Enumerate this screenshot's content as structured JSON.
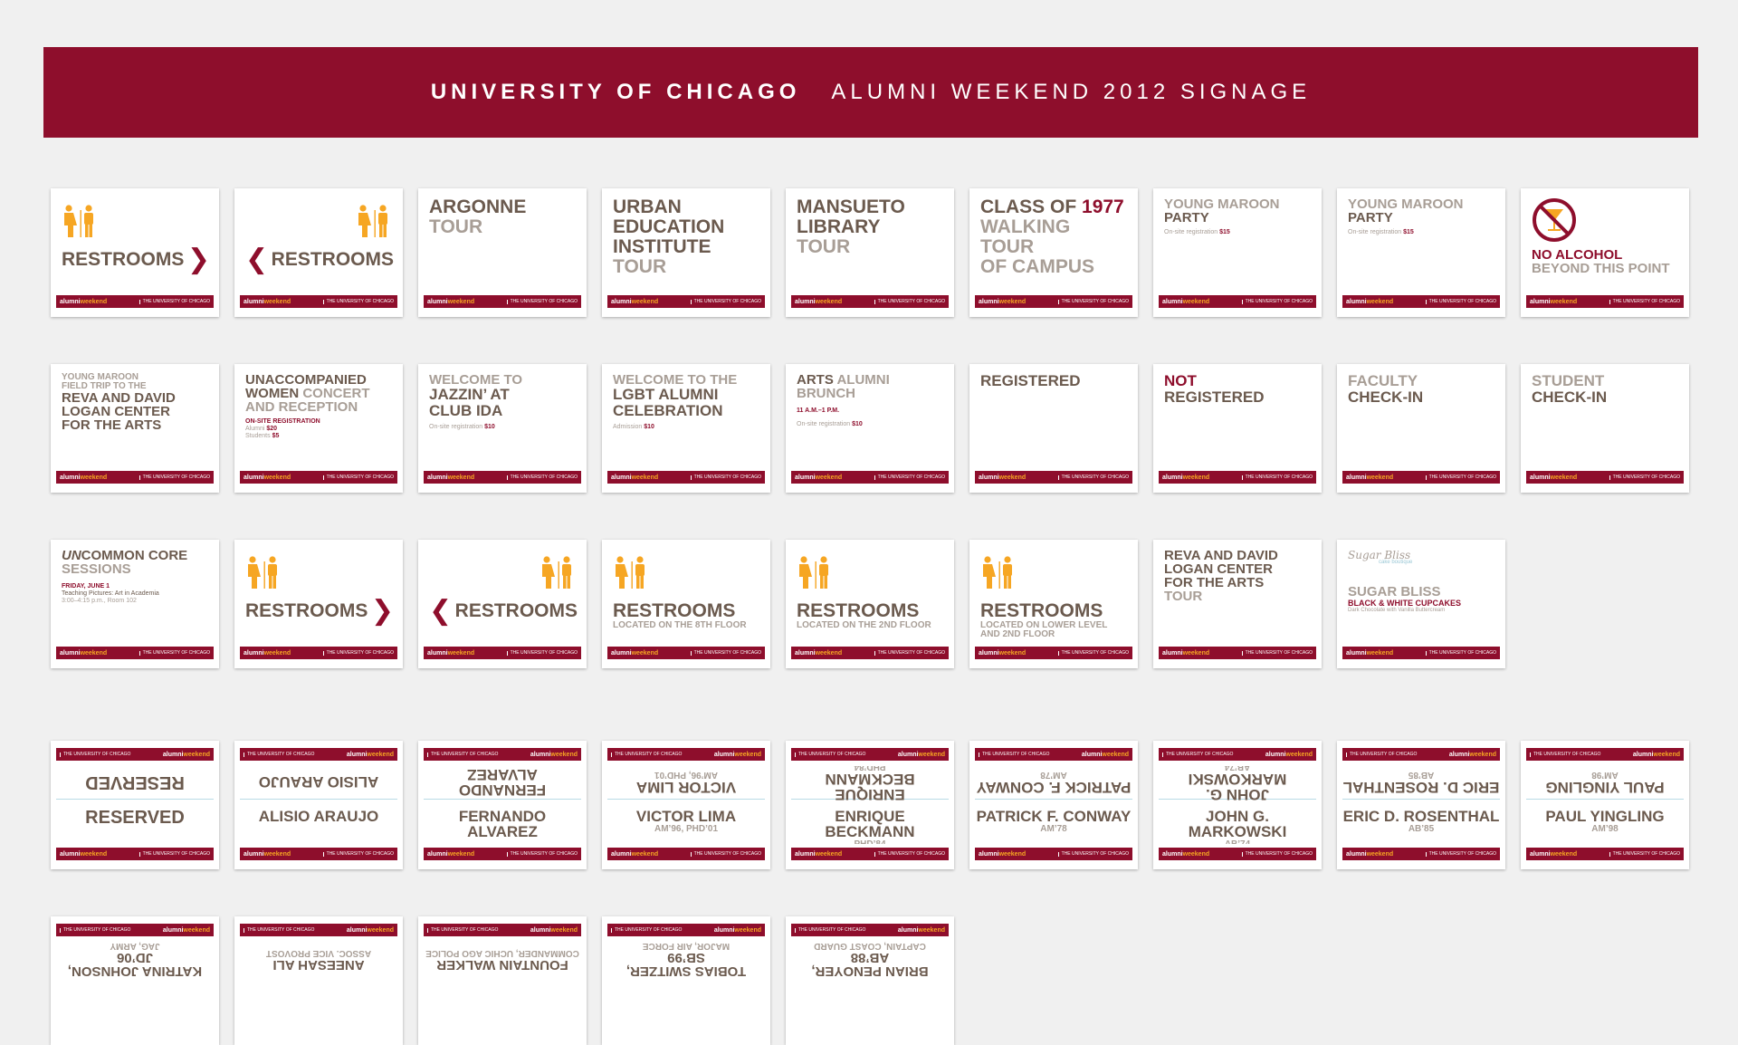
{
  "banner": {
    "title": "UNIVERSITY OF CHICAGO",
    "subtitle": "ALUMNI WEEKEND 2012 SIGNAGE"
  },
  "footer": {
    "alumni": "alumni",
    "weekend": "weekend",
    "uchicago": "THE UNIVERSITY OF CHICAGO"
  },
  "colors": {
    "maroon": "#8e0e2c",
    "gold": "#f6a623",
    "brown": "#6b5a4e",
    "grey": "#a89e96"
  },
  "icons": [
    "restroom-icon",
    "chevron-right-icon",
    "chevron-left-icon",
    "no-alcohol-icon"
  ],
  "row1": {
    "restrooms": "RESTROOMS",
    "argonne": [
      "ARGONNE",
      "TOUR"
    ],
    "urban": [
      "URBAN",
      "EDUCATION",
      "INSTITUTE",
      "TOUR"
    ],
    "mansueto": [
      "MANSUETO",
      "LIBRARY",
      "TOUR"
    ],
    "class1977": {
      "a": "CLASS OF ",
      "b": "1977",
      "c": "WALKING TOUR",
      "d": "OF CAMPUS"
    },
    "young_maroon": {
      "a": "YOUNG MAROON",
      "b": "PARTY",
      "reg": "On-site registration ",
      "price": "$15"
    },
    "no_alcohol": [
      "NO ALCOHOL",
      "BEYOND THIS POINT"
    ]
  },
  "row2": {
    "field_trip": [
      "YOUNG MAROON",
      "FIELD TRIP TO THE",
      "REVA AND DAVID",
      "LOGAN CENTER",
      "FOR THE ARTS"
    ],
    "women": {
      "a": "UNACCOMPANIED",
      "b": "WOMEN",
      "c": " CONCERT",
      "d": "AND RECEPTION",
      "reg": "ON-SITE REGISTRATION",
      "alumni": "Alumni ",
      "alumni_price": "$20",
      "students": "Students ",
      "students_price": "$5"
    },
    "jazz": {
      "a": "WELCOME TO",
      "b": "JAZZIN’ AT",
      "c": "CLUB IDA",
      "reg": "On-site registration ",
      "price": "$10"
    },
    "lgbt": {
      "a": "WELCOME TO THE",
      "b": "LGBT ALUMNI",
      "c": "CELEBRATION",
      "adm": "Admission ",
      "price": "$10"
    },
    "arts": {
      "a": "ARTS",
      "b": " ALUMNI",
      "c": "BRUNCH",
      "time": "11 A.M.–1 P.M.",
      "reg": "On-site registration ",
      "price": "$10"
    },
    "registered": "REGISTERED",
    "not_registered": [
      "NOT",
      "REGISTERED"
    ],
    "faculty": [
      "FACULTY",
      "CHECK-IN"
    ],
    "student": [
      "STUDENT",
      "CHECK-IN"
    ]
  },
  "row3": {
    "uncommon": {
      "un": "UN",
      "common": "COMMON CORE",
      "sessions": "SESSIONS",
      "date": "FRIDAY, JUNE 1",
      "talk": "Teaching Pictures: Art in Academia",
      "time": "3:00–4:15 p.m., Room 102"
    },
    "restrooms": "RESTROOMS",
    "loc8": "LOCATED ON THE 8TH FLOOR",
    "loc2": "LOCATED ON THE 2ND FLOOR",
    "loclower": [
      "LOCATED ON LOWER LEVEL",
      "AND 2ND FLOOR"
    ],
    "logan": [
      "REVA AND DAVID",
      "LOGAN CENTER",
      "FOR THE ARTS",
      "TOUR"
    ],
    "sugar": {
      "logo": "Sugar Bliss",
      "logo_sub": "cake boutique",
      "a": "SUGAR BLISS",
      "b": "BLACK & WHITE CUPCAKES",
      "c": "Dark Chocolate with Vanilla Buttercream"
    }
  },
  "tags": [
    {
      "name": "RESERVED",
      "degree": ""
    },
    {
      "name": "ALISIO ARAUJO",
      "degree": ""
    },
    {
      "name": "FERNANDO ALVAREZ",
      "degree": ""
    },
    {
      "name": "VICTOR LIMA",
      "degree": "AM’96, PHD’01"
    },
    {
      "name": "ENRIQUE BECKMANN",
      "degree": "PHD’84"
    },
    {
      "name": "PATRICK F. CONWAY",
      "degree": "AM’78"
    },
    {
      "name": "JOHN G. MARKOWSKI",
      "degree": "AB’74"
    },
    {
      "name": "ERIC D. ROSENTHAL",
      "degree": "AB’85"
    },
    {
      "name": "PAUL YINGLING",
      "degree": "AM’98"
    }
  ],
  "tags_bottom": [
    {
      "name": "KATRINA JOHNSON, JD’06",
      "role": "JAG, ARMY"
    },
    {
      "name": "ANEESAH ALI",
      "role": "ASSOC. VICE PROVOST"
    },
    {
      "name": "FOUNTAIN WALKER",
      "role": "COMMANDER, UCHIC AGO POLICE"
    },
    {
      "name": "TOBIAS SWITZER, SB’99",
      "role": "MAJOR, AIR FORCE"
    },
    {
      "name": "BRIAN PENOYER, AB’88",
      "role": "CAPTAIN, COAST GUARD"
    }
  ]
}
